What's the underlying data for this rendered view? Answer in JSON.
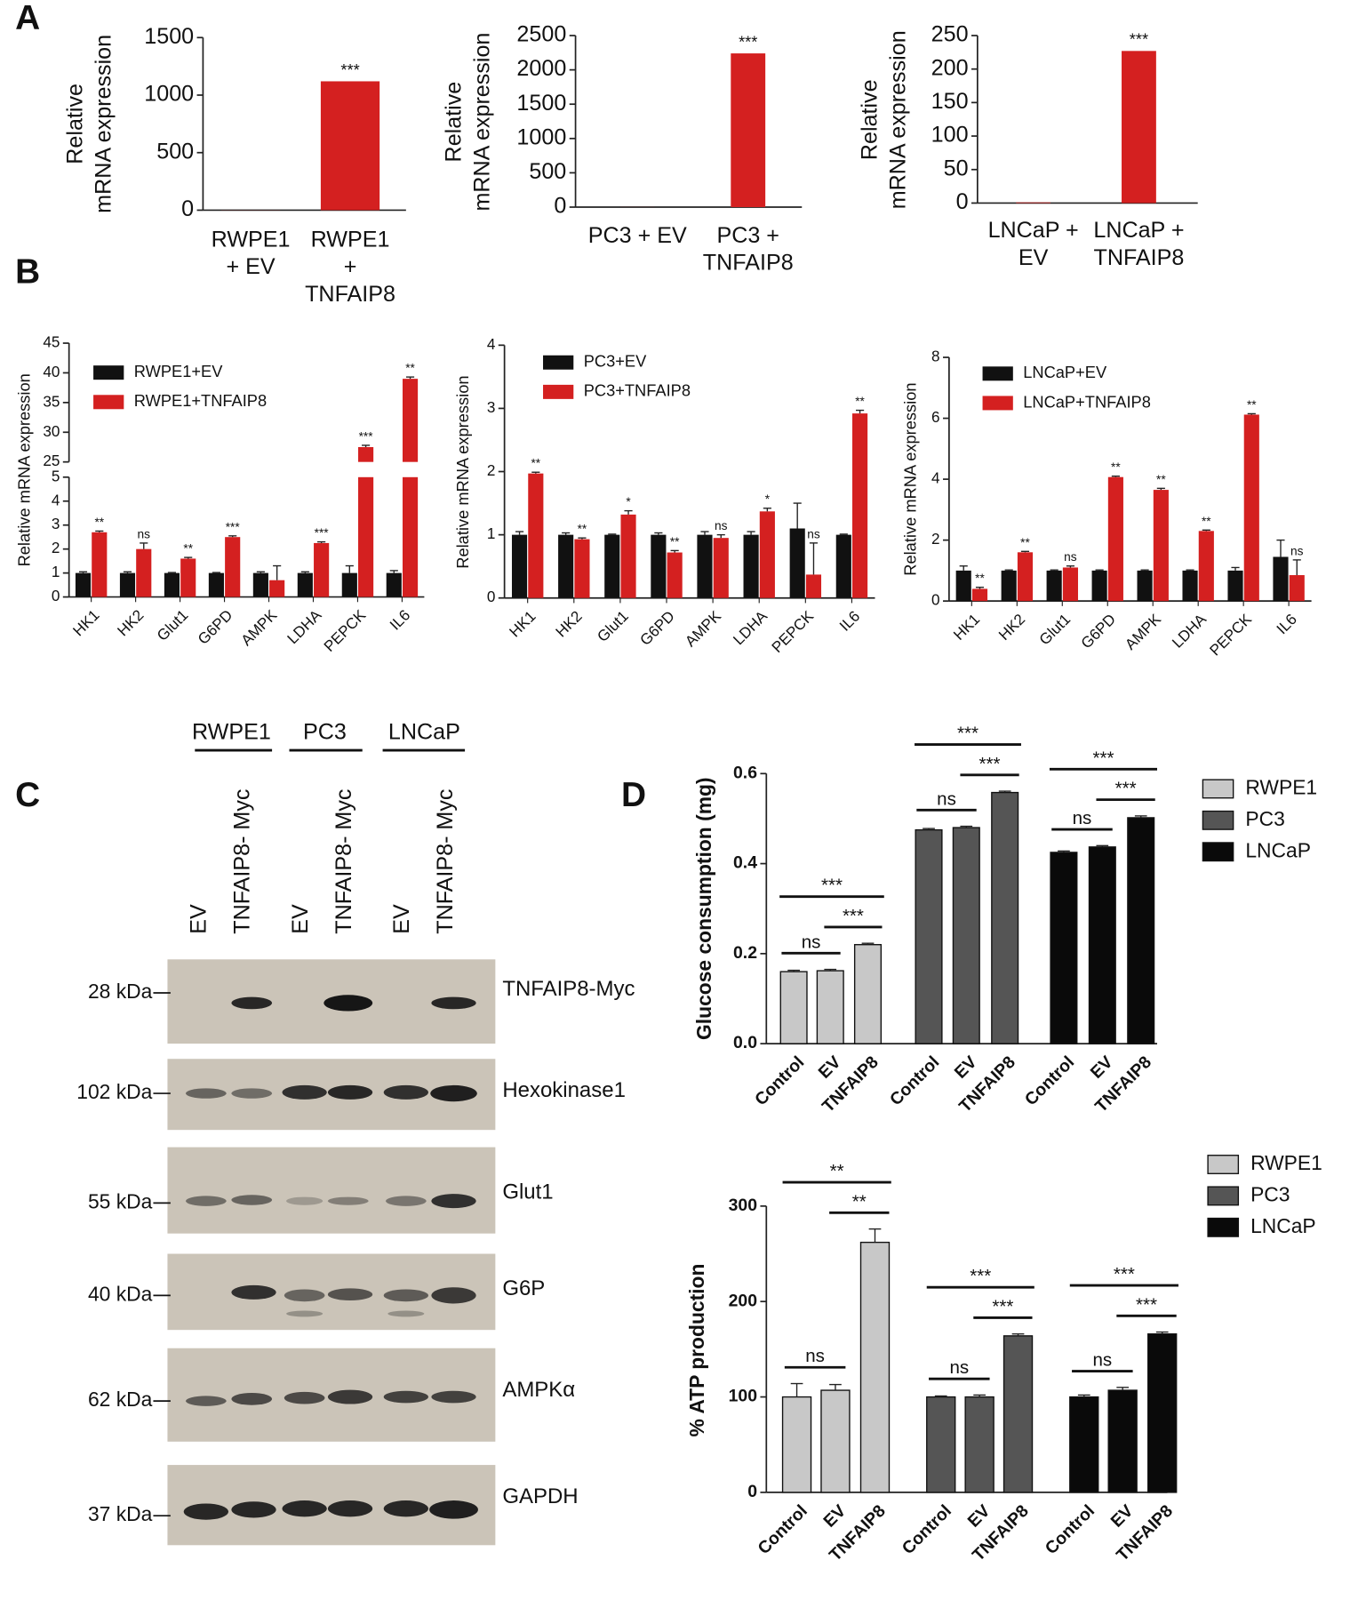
{
  "panel_labels": [
    "A",
    "B",
    "C",
    "D"
  ],
  "chart_data": [
    {
      "type": "bar",
      "ylabel": [
        "Relative",
        "mRNA expression"
      ],
      "categories": [
        [
          "RWPE1",
          "+ EV"
        ],
        [
          "RWPE1",
          "+",
          "TNFAIP8"
        ]
      ],
      "values": [
        1,
        1120
      ],
      "color": "#d42020",
      "significance": [
        null,
        "***"
      ],
      "ylim": [
        0,
        1500
      ],
      "yticks": [
        0,
        500,
        1000,
        1500
      ]
    },
    {
      "type": "bar",
      "ylabel": [
        "Relative",
        "mRNA expression"
      ],
      "categories": [
        [
          "PC3 + EV"
        ],
        [
          "PC3 +",
          "TNFAIP8"
        ]
      ],
      "values": [
        1,
        2240
      ],
      "color": "#d42020",
      "significance": [
        null,
        "***"
      ],
      "ylim": [
        0,
        2500
      ],
      "yticks": [
        0,
        500,
        1000,
        1500,
        2000,
        2500
      ]
    },
    {
      "type": "bar",
      "ylabel": [
        "Relative",
        "mRNA expression"
      ],
      "categories": [
        [
          "LNCaP +",
          "EV"
        ],
        [
          "LNCaP +",
          "TNFAIP8"
        ]
      ],
      "values": [
        1,
        227
      ],
      "color": "#d42020",
      "significance": [
        null,
        "***"
      ],
      "ylim": [
        0,
        250
      ],
      "yticks": [
        0,
        50,
        100,
        150,
        200,
        250
      ]
    },
    {
      "type": "grouped_bar",
      "ylabel": "Relative mRNA expression",
      "categories": [
        "HK1",
        "HK2",
        "Glut1",
        "G6PD",
        "AMPK",
        "LDHA",
        "PEPCK",
        "IL6"
      ],
      "series": [
        {
          "name": "RWPE1+EV",
          "color": "#111111",
          "values": [
            1,
            1,
            1,
            1,
            1,
            1,
            1,
            1
          ],
          "errors": [
            0.05,
            0.05,
            0.02,
            0.02,
            0.05,
            0.05,
            0.3,
            0.1
          ]
        },
        {
          "name": "RWPE1+TNFAIP8",
          "color": "#d42020",
          "values": [
            2.7,
            2,
            1.6,
            2.5,
            0.7,
            2.25,
            27.5,
            39
          ],
          "errors": [
            0.05,
            0.25,
            0.05,
            0.05,
            0.6,
            0.05,
            0.3,
            0.3
          ]
        }
      ],
      "significance": [
        "**",
        "ns",
        "**",
        "***",
        null,
        "***",
        "***",
        "**"
      ],
      "ylim": [
        0,
        45
      ],
      "ybreak": [
        5,
        25
      ],
      "yticks": [
        0,
        1,
        2,
        3,
        4,
        5,
        25,
        30,
        35,
        40,
        45
      ]
    },
    {
      "type": "grouped_bar",
      "ylabel": "Relative mRNA expression",
      "categories": [
        "HK1",
        "HK2",
        "Glut1",
        "G6PD",
        "AMPK",
        "LDHA",
        "PEPCK",
        "IL6"
      ],
      "series": [
        {
          "name": "PC3+EV",
          "color": "#111111",
          "values": [
            1,
            1,
            1,
            1,
            1,
            1,
            1.1,
            1
          ],
          "errors": [
            0.05,
            0.03,
            0.01,
            0.03,
            0.05,
            0.05,
            0.4,
            0.01
          ]
        },
        {
          "name": "PC3+TNFAIP8",
          "color": "#d42020",
          "values": [
            1.97,
            0.93,
            1.32,
            0.72,
            0.95,
            1.37,
            0.37,
            2.92
          ],
          "errors": [
            0.02,
            0.02,
            0.06,
            0.03,
            0.05,
            0.05,
            0.5,
            0.05
          ]
        }
      ],
      "significance": [
        "**",
        "**",
        "*",
        "**",
        "ns",
        "*",
        "ns",
        "**"
      ],
      "ylim": [
        0,
        4
      ],
      "yticks": [
        0,
        1,
        2,
        3,
        4
      ]
    },
    {
      "type": "grouped_bar",
      "ylabel": "Relative mRNA expression",
      "categories": [
        "HK1",
        "HK2",
        "Glut1",
        "G6PD",
        "AMPK",
        "LDHA",
        "PEPCK",
        "IL6"
      ],
      "series": [
        {
          "name": "LNCaP+EV",
          "color": "#111111",
          "values": [
            1,
            1,
            1,
            1,
            1,
            1,
            1,
            1.45
          ],
          "errors": [
            0.15,
            0.02,
            0.02,
            0.02,
            0.02,
            0.02,
            0.1,
            0.55
          ]
        },
        {
          "name": "LNCaP+TNFAIP8",
          "color": "#d42020",
          "values": [
            0.4,
            1.6,
            1.1,
            4.07,
            3.65,
            2.3,
            6.12,
            0.85
          ],
          "errors": [
            0.05,
            0.03,
            0.05,
            0.03,
            0.05,
            0.03,
            0.03,
            0.5
          ]
        }
      ],
      "significance": [
        "**",
        "**",
        "ns",
        "**",
        "**",
        "**",
        "**",
        "ns"
      ],
      "ylim": [
        0,
        8
      ],
      "yticks": [
        0,
        2,
        4,
        6,
        8
      ]
    },
    {
      "type": "clustered_bar",
      "ylabel": "Glucose consumption (mg)",
      "categories": [
        "Control",
        "EV",
        "TNFAIP8"
      ],
      "series": [
        {
          "name": "RWPE1",
          "color": "#c8c8c8",
          "values": [
            0.16,
            0.162,
            0.22
          ],
          "errors": [
            0.003,
            0.003,
            0.003
          ],
          "significance": [
            "ns",
            "***",
            "***"
          ]
        },
        {
          "name": "PC3",
          "color": "#555555",
          "values": [
            0.475,
            0.48,
            0.558
          ],
          "errors": [
            0.003,
            0.003,
            0.003
          ],
          "significance": [
            "ns",
            "***",
            "***"
          ]
        },
        {
          "name": "LNCaP",
          "color": "#0a0a0a",
          "values": [
            0.425,
            0.437,
            0.502
          ],
          "errors": [
            0.003,
            0.003,
            0.004
          ],
          "significance": [
            "ns",
            "***",
            "***"
          ]
        }
      ],
      "ylim": [
        0,
        0.6
      ],
      "yticks": [
        {
          "value": 0,
          "label": "0.0"
        },
        0.2,
        0.4,
        0.6
      ]
    },
    {
      "type": "clustered_bar",
      "ylabel": "% ATP production",
      "categories": [
        "Control",
        "EV",
        "TNFAIP8"
      ],
      "series": [
        {
          "name": "RWPE1",
          "color": "#c8c8c8",
          "values": [
            100,
            107,
            262
          ],
          "errors": [
            14,
            6,
            14
          ],
          "significance": [
            "ns",
            "**",
            "**"
          ]
        },
        {
          "name": "PC3",
          "color": "#555555",
          "values": [
            100,
            100,
            164
          ],
          "errors": [
            1,
            2,
            2
          ],
          "significance": [
            "ns",
            "***",
            "***"
          ]
        },
        {
          "name": "LNCaP",
          "color": "#0a0a0a",
          "values": [
            100,
            107,
            166
          ],
          "errors": [
            2,
            3,
            2
          ],
          "significance": [
            "ns",
            "***",
            "***"
          ]
        }
      ],
      "ylim": [
        0,
        300
      ],
      "yticks": [
        0,
        100,
        200,
        300
      ]
    }
  ],
  "blot": {
    "groups": [
      "RWPE1",
      "PC3",
      "LNCaP"
    ],
    "lanes": [
      "EV",
      "TNFAIP8- Myc",
      "EV",
      "TNFAIP8- Myc",
      "EV",
      "TNFAIP8- Myc"
    ],
    "rows": [
      {
        "marker": "28 kDa",
        "protein": "TNFAIP8-Myc"
      },
      {
        "marker": "102 kDa",
        "protein": "Hexokinase1"
      },
      {
        "marker": "55 kDa",
        "protein": "Glut1"
      },
      {
        "marker": "40 kDa",
        "protein": "G6P"
      },
      {
        "marker": "62 kDa",
        "protein": "AMPKα"
      },
      {
        "marker": "37 kDa",
        "protein": "GAPDH"
      }
    ]
  }
}
